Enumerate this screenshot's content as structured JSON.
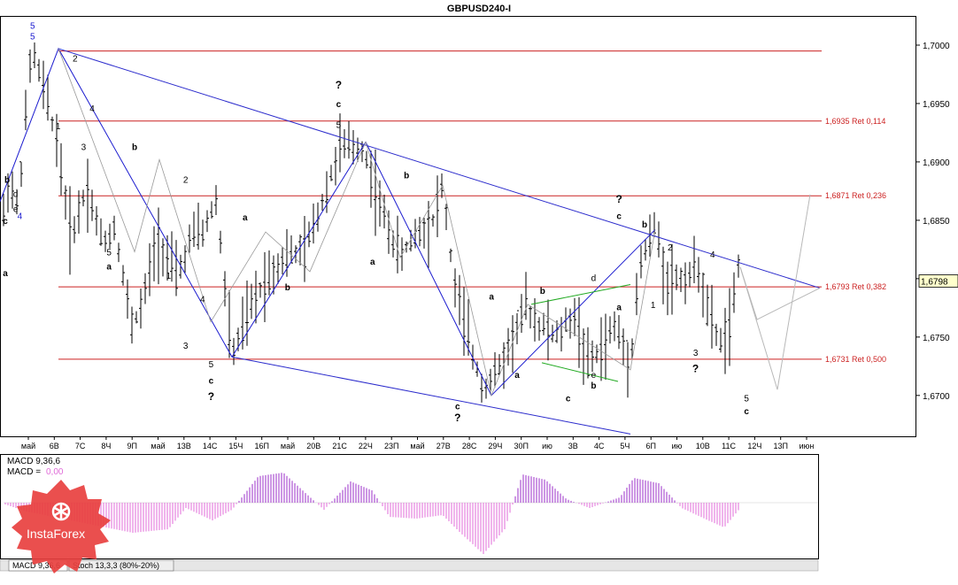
{
  "colors": {
    "wave": "#1b1bcf",
    "channel": "#2b2bcc",
    "fib": "#cc2222",
    "projection": "#b8b8b8",
    "green": "#22aa22",
    "macd_pos": "#9b2fc9",
    "macd_neg": "#e06bd8",
    "price_box": "#ffffcc",
    "brand": "#e8403f"
  },
  "chart_data": [
    {
      "type": "bar",
      "title": "GBPUSD240-I",
      "price_tag": "1,6798",
      "ylim": [
        1.6665,
        1.7025
      ],
      "y_ticks": [
        "1,7000",
        "1,6950",
        "1,6900",
        "1,6850",
        "1,6800",
        "1,6750",
        "1,6700"
      ],
      "x_ticks": [
        "май",
        "6В",
        "7С",
        "8Ч",
        "9П",
        "май",
        "13В",
        "14С",
        "15Ч",
        "16П",
        "май",
        "20В",
        "21С",
        "22Ч",
        "23П",
        "май",
        "27В",
        "28С",
        "29Ч",
        "30П",
        "ию",
        "3В",
        "4С",
        "5Ч",
        "6П",
        "ию",
        "10В",
        "11С",
        "12Ч",
        "13П",
        "июн"
      ],
      "retracements": [
        {
          "label": "1,6935 Ret 0,114",
          "value": 1.6935
        },
        {
          "label": "1,6871 Ret 0,236",
          "value": 1.6871
        },
        {
          "label": "1,6793 Ret 0,382",
          "value": 1.6793
        },
        {
          "label": "1,6731 Ret 0,500",
          "value": 1.6731
        }
      ],
      "extra_levels": [
        1.6995
      ],
      "wave_labels": [
        {
          "text": "5",
          "x": 3,
          "y": 1.7014,
          "color": "wave"
        },
        {
          "text": "5",
          "x": 3,
          "y": 1.7005,
          "color": "wave"
        },
        {
          "text": "2",
          "x": 8,
          "y": 1.6986,
          "color": "black"
        },
        {
          "text": "4",
          "x": 10,
          "y": 1.6943,
          "color": "black"
        },
        {
          "text": "1",
          "x": 6,
          "y": 1.6928,
          "color": "black"
        },
        {
          "text": "3",
          "x": 9,
          "y": 1.691,
          "color": "black"
        },
        {
          "text": "b",
          "x": 0,
          "y": 1.6882,
          "color": "black"
        },
        {
          "text": "d",
          "x": 1,
          "y": 1.687,
          "color": "black"
        },
        {
          "text": "e",
          "x": 1,
          "y": 1.6857,
          "color": "black"
        },
        {
          "text": "c",
          "x": -0.5,
          "y": 1.6847,
          "color": "black"
        },
        {
          "text": "4",
          "x": 1.5,
          "y": 1.6851,
          "color": "wave"
        },
        {
          "text": "a",
          "x": -2,
          "y": 1.6802,
          "color": "black"
        },
        {
          "text": "b",
          "x": 15,
          "y": 1.691,
          "color": "black"
        },
        {
          "text": "2",
          "x": 21,
          "y": 1.6882,
          "color": "black"
        },
        {
          "text": "5",
          "x": 12,
          "y": 1.682,
          "color": "black"
        },
        {
          "text": "a",
          "x": 12,
          "y": 1.6808,
          "color": "black"
        },
        {
          "text": "1",
          "x": 19,
          "y": 1.68,
          "color": "black"
        },
        {
          "text": "4",
          "x": 23,
          "y": 1.678,
          "color": "black"
        },
        {
          "text": "3",
          "x": 21,
          "y": 1.674,
          "color": "black"
        },
        {
          "text": "5",
          "x": 24,
          "y": 1.6724,
          "color": "black"
        },
        {
          "text": "c",
          "x": 24,
          "y": 1.671,
          "color": "black"
        },
        {
          "text": "?",
          "x": 24,
          "y": 1.6696,
          "color": "black"
        },
        {
          "text": "a",
          "x": 28,
          "y": 1.685,
          "color": "black"
        },
        {
          "text": "b",
          "x": 33,
          "y": 1.679,
          "color": "black"
        },
        {
          "text": "?",
          "x": 39,
          "y": 1.6963,
          "color": "black"
        },
        {
          "text": "c",
          "x": 39,
          "y": 1.6947,
          "color": "black"
        },
        {
          "text": "5",
          "x": 39,
          "y": 1.6929,
          "color": "black"
        },
        {
          "text": "a",
          "x": 43,
          "y": 1.6812,
          "color": "black"
        },
        {
          "text": "b",
          "x": 47,
          "y": 1.6886,
          "color": "black"
        },
        {
          "text": "?",
          "x": 53,
          "y": 1.6678,
          "color": "black"
        },
        {
          "text": "c",
          "x": 53,
          "y": 1.6688,
          "color": "black"
        },
        {
          "text": "a",
          "x": 57,
          "y": 1.6782,
          "color": "black"
        },
        {
          "text": "b",
          "x": 63,
          "y": 1.6787,
          "color": "black"
        },
        {
          "text": "a",
          "x": 60,
          "y": 1.6715,
          "color": "black"
        },
        {
          "text": "c",
          "x": 66,
          "y": 1.6695,
          "color": "black"
        },
        {
          "text": "d",
          "x": 69,
          "y": 1.6798,
          "color": "black"
        },
        {
          "text": "e",
          "x": 69,
          "y": 1.6715,
          "color": "black"
        },
        {
          "text": "b",
          "x": 69,
          "y": 1.6706,
          "color": "black"
        },
        {
          "text": "?",
          "x": 72,
          "y": 1.6865,
          "color": "black"
        },
        {
          "text": "c",
          "x": 72,
          "y": 1.6851,
          "color": "black"
        },
        {
          "text": "b",
          "x": 75,
          "y": 1.6844,
          "color": "black"
        },
        {
          "text": "a",
          "x": 72,
          "y": 1.6773,
          "color": "black"
        },
        {
          "text": "2",
          "x": 78,
          "y": 1.6824,
          "color": "black"
        },
        {
          "text": "1",
          "x": 76,
          "y": 1.6775,
          "color": "black"
        },
        {
          "text": "4",
          "x": 83,
          "y": 1.6818,
          "color": "black"
        },
        {
          "text": "3",
          "x": 81,
          "y": 1.6734,
          "color": "black"
        },
        {
          "text": "?",
          "x": 81,
          "y": 1.672,
          "color": "black"
        },
        {
          "text": "5",
          "x": 87,
          "y": 1.6695,
          "color": "black"
        },
        {
          "text": "c",
          "x": 87,
          "y": 1.6684,
          "color": "black"
        }
      ]
    },
    {
      "type": "bar",
      "title": "MACD",
      "legend_1": "MACD 9,36,6",
      "legend_2": "MACD =",
      "legend_value": "0,00",
      "tabs": [
        "MACD 9,36,6",
        "Stoch 13,3,3 (80%-20%)"
      ]
    }
  ],
  "brand": {
    "name": "InstaForex",
    "icon": "instaforex-logo-icon"
  }
}
